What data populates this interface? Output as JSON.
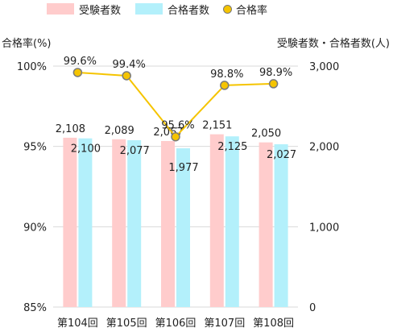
{
  "legend": {
    "applicants": "受験者数",
    "passers": "合格者数",
    "rate": "合格率"
  },
  "colors": {
    "applicants": "#ffcccc",
    "passers": "#b3f0fb",
    "rate_line": "#f5c400",
    "rate_marker": "#f5c400",
    "rate_marker_edge": "#7a7a7a",
    "grid": "#d9d9d9"
  },
  "chart_data": {
    "type": "bar+line",
    "categories": [
      "第104回",
      "第105回",
      "第106回",
      "第107回",
      "第108回"
    ],
    "series": [
      {
        "name": "受験者数",
        "type": "bar",
        "axis": "right",
        "values": [
          2108,
          2089,
          2067,
          2151,
          2050
        ],
        "labels": [
          "2,108",
          "2,089",
          "2,067",
          "2,151",
          "2,050"
        ]
      },
      {
        "name": "合格者数",
        "type": "bar",
        "axis": "right",
        "values": [
          2100,
          2077,
          1977,
          2125,
          2027
        ],
        "labels": [
          "2,100",
          "2,077",
          "1,977",
          "2,125",
          "2,027"
        ]
      },
      {
        "name": "合格率",
        "type": "line",
        "axis": "left",
        "values": [
          99.6,
          99.4,
          95.6,
          98.8,
          98.9
        ],
        "labels": [
          "99.6%",
          "99.4%",
          "95.6%",
          "98.8%",
          "98.9%"
        ]
      }
    ],
    "ylabel_left": "合格率(%)",
    "ylabel_right": "受験者数・合格者数(人)",
    "ylim_left": [
      85,
      100
    ],
    "ylim_right": [
      0,
      3000
    ],
    "yticks_left": [
      "85%",
      "90%",
      "95%",
      "100%"
    ],
    "yticks_right": [
      "0",
      "1,000",
      "2,000",
      "3,000"
    ],
    "grid": true,
    "legend_position": "top"
  }
}
